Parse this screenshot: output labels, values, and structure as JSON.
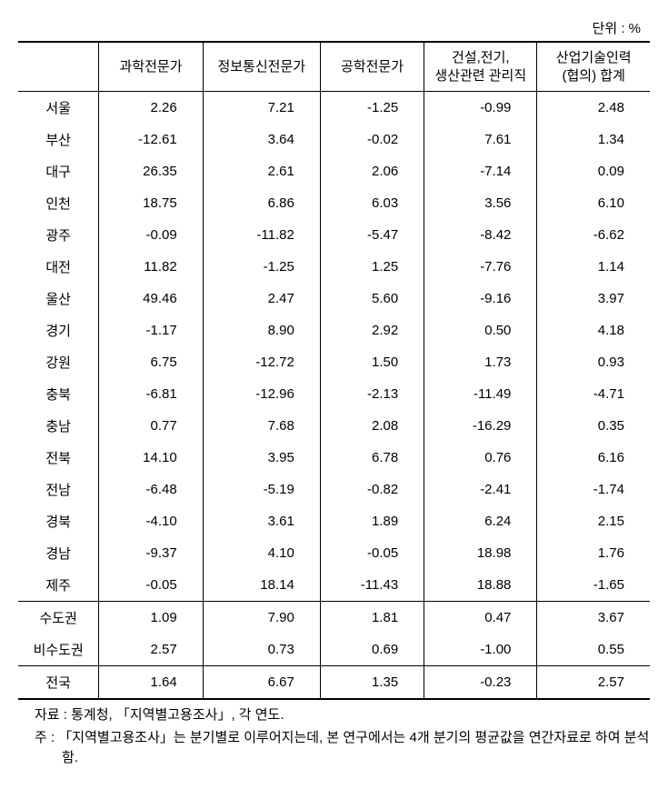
{
  "unit": "단위 : %",
  "headers": [
    "",
    "과학전문가",
    "정보통신전문가",
    "공학전문가",
    "건설,전기,\n생산관련 관리직",
    "산업기술인력\n(협의) 합계"
  ],
  "rows": [
    {
      "region": "서울",
      "v": [
        "2.26",
        "7.21",
        "-1.25",
        "-0.99",
        "2.48"
      ]
    },
    {
      "region": "부산",
      "v": [
        "-12.61",
        "3.64",
        "-0.02",
        "7.61",
        "1.34"
      ]
    },
    {
      "region": "대구",
      "v": [
        "26.35",
        "2.61",
        "2.06",
        "-7.14",
        "0.09"
      ]
    },
    {
      "region": "인천",
      "v": [
        "18.75",
        "6.86",
        "6.03",
        "3.56",
        "6.10"
      ]
    },
    {
      "region": "광주",
      "v": [
        "-0.09",
        "-11.82",
        "-5.47",
        "-8.42",
        "-6.62"
      ]
    },
    {
      "region": "대전",
      "v": [
        "11.82",
        "-1.25",
        "1.25",
        "-7.76",
        "1.14"
      ]
    },
    {
      "region": "울산",
      "v": [
        "49.46",
        "2.47",
        "5.60",
        "-9.16",
        "3.97"
      ]
    },
    {
      "region": "경기",
      "v": [
        "-1.17",
        "8.90",
        "2.92",
        "0.50",
        "4.18"
      ]
    },
    {
      "region": "강원",
      "v": [
        "6.75",
        "-12.72",
        "1.50",
        "1.73",
        "0.93"
      ]
    },
    {
      "region": "충북",
      "v": [
        "-6.81",
        "-12.96",
        "-2.13",
        "-11.49",
        "-4.71"
      ]
    },
    {
      "region": "충남",
      "v": [
        "0.77",
        "7.68",
        "2.08",
        "-16.29",
        "0.35"
      ]
    },
    {
      "region": "전북",
      "v": [
        "14.10",
        "3.95",
        "6.78",
        "0.76",
        "6.16"
      ]
    },
    {
      "region": "전남",
      "v": [
        "-6.48",
        "-5.19",
        "-0.82",
        "-2.41",
        "-1.74"
      ]
    },
    {
      "region": "경북",
      "v": [
        "-4.10",
        "3.61",
        "1.89",
        "6.24",
        "2.15"
      ]
    },
    {
      "region": "경남",
      "v": [
        "-9.37",
        "4.10",
        "-0.05",
        "18.98",
        "1.76"
      ]
    },
    {
      "region": "제주",
      "v": [
        "-0.05",
        "18.14",
        "-11.43",
        "18.88",
        "-1.65"
      ]
    }
  ],
  "summary1": [
    {
      "region": "수도권",
      "v": [
        "1.09",
        "7.90",
        "1.81",
        "0.47",
        "3.67"
      ]
    },
    {
      "region": "비수도권",
      "v": [
        "2.57",
        "0.73",
        "0.69",
        "-1.00",
        "0.55"
      ]
    }
  ],
  "summary2": [
    {
      "region": "전국",
      "v": [
        "1.64",
        "6.67",
        "1.35",
        "-0.23",
        "2.57"
      ]
    }
  ],
  "notes": {
    "source": "자료 : 통계청, 「지역별고용조사」, 각 연도.",
    "note": "주 : 「지역별고용조사」는 분기별로 이루어지는데, 본 연구에서는 4개 분기의 평균값을 연간자료로 하여 분석함."
  },
  "style": {
    "col_widths": [
      "90px",
      "115px",
      "130px",
      "115px",
      "125px",
      "125px"
    ]
  }
}
